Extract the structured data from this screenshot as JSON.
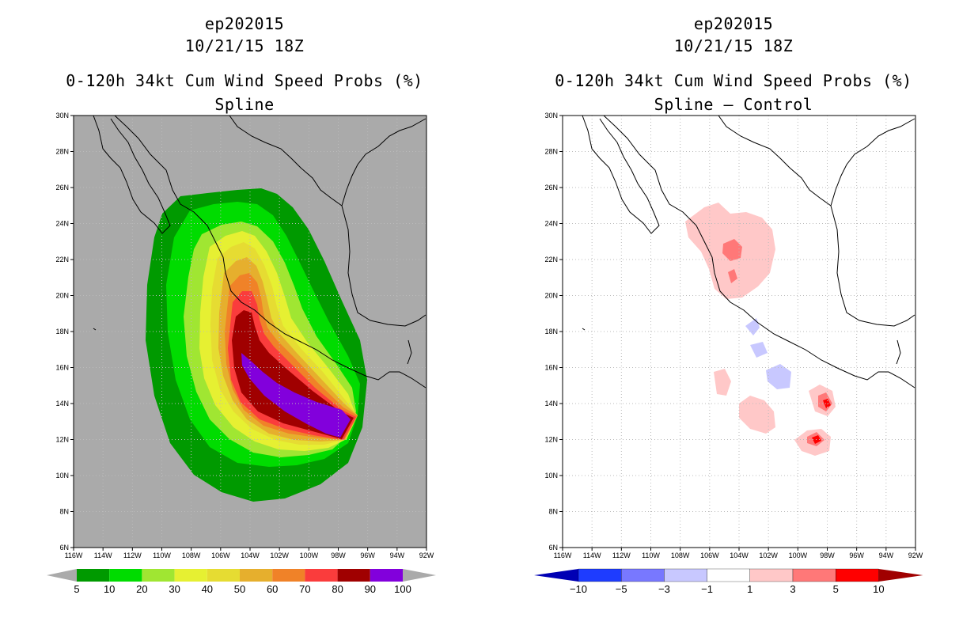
{
  "left": {
    "storm": "ep202015",
    "time": "10/21/15 18Z",
    "product": "0-120h 34kt Cum Wind Speed Probs (%)",
    "subtitle": "Spline",
    "colorbar": {
      "labels": [
        "5",
        "10",
        "20",
        "30",
        "40",
        "50",
        "60",
        "70",
        "80",
        "90",
        "100"
      ],
      "colors": [
        "#009a00",
        "#00dc00",
        "#a0e632",
        "#e6f032",
        "#e6dc32",
        "#e6af2d",
        "#f08228",
        "#fa3c3c",
        "#a00000",
        "#8200dc"
      ]
    }
  },
  "right": {
    "storm": "ep202015",
    "time": "10/21/15 18Z",
    "product": "0-120h 34kt Cum Wind Speed Probs (%)",
    "subtitle": "Spline – Control",
    "colorbar": {
      "labels": [
        "−10",
        "−5",
        "−3",
        "−1",
        "1",
        "3",
        "5",
        "10"
      ],
      "colors": [
        "#0000b4",
        "#1e3cff",
        "#7878ff",
        "#c8c8ff",
        "#ffffff",
        "#ffc8c8",
        "#ff7878",
        "#ff0000",
        "#a00000"
      ]
    }
  },
  "axes": {
    "lat_labels": [
      "30N",
      "28N",
      "26N",
      "24N",
      "22N",
      "20N",
      "18N",
      "16N",
      "14N",
      "12N",
      "10N",
      "8N",
      "6N"
    ],
    "lon_labels": [
      "116W",
      "114W",
      "112W",
      "110W",
      "108W",
      "106W",
      "104W",
      "102W",
      "100W",
      "98W",
      "96W",
      "94W",
      "92W"
    ]
  },
  "colors": {
    "land_bg": "#aaaaaa",
    "coast": "#000000",
    "grid": "#bbbbbb"
  }
}
